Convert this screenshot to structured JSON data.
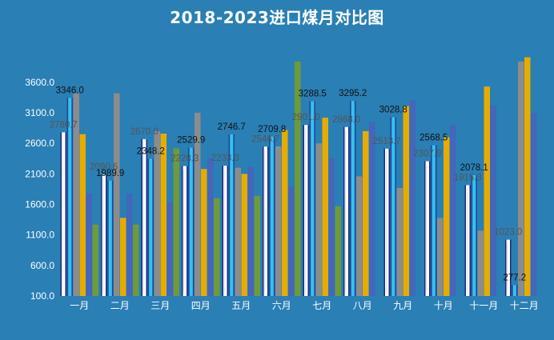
{
  "chart_data": {
    "type": "bar",
    "title": "2018-2023进口煤月对比图",
    "xlabel": "",
    "ylabel": "",
    "categories": [
      "一月",
      "二月",
      "三月",
      "四月",
      "五月",
      "六月",
      "七月",
      "八月",
      "九月",
      "十月",
      "十一月",
      "十二月"
    ],
    "ylim": [
      100,
      3900
    ],
    "yticks": [
      100.0,
      600.0,
      1100.0,
      1600.0,
      2100.0,
      2600.0,
      3100.0,
      3600.0
    ],
    "ytick_labels": [
      "100.0",
      "600.0",
      "1100.0",
      "1600.0",
      "2100.0",
      "2600.0",
      "3100.0",
      "3600.0"
    ],
    "grid": false,
    "legend": "none",
    "series": [
      {
        "color": "#ffffff",
        "values": [
          2780.7,
          2090.6,
          2670.0,
          2228.3,
          2233.3,
          2546.7,
          2901.0,
          2868.0,
          2513.7,
          2307.9,
          1915.3,
          1023.0
        ],
        "labels": [
          "2780.7",
          "2090.6",
          "2670.0",
          "2228.3",
          "2233.3",
          "2546.7",
          "2901.0",
          "2868.0",
          "2513.7",
          "2307.9",
          "1915.3",
          "1023.0"
        ]
      },
      {
        "color": "#2eb3e0",
        "values": [
          3346.0,
          1989.9,
          2348.2,
          2529.9,
          2746.7,
          2709.8,
          3288.5,
          3295.2,
          3028.8,
          2568.5,
          2078.1,
          277.2
        ],
        "labels": [
          "3346.0",
          "1989.9",
          "2348.2",
          "2529.9",
          "2746.7",
          "2709.8",
          "3288.5",
          "3295.2",
          "3028.8",
          "2568.5",
          "2078.1",
          "277.2"
        ]
      },
      {
        "color": "#8c8c8c",
        "values": [
          3420,
          3420,
          2800,
          3100,
          2200,
          2550,
          2600,
          2060,
          1870,
          1380,
          1170,
          3940
        ]
      },
      {
        "color": "#e6ac00",
        "values": [
          2750,
          1380,
          2760,
          2180,
          2100,
          2820,
          3020,
          2800,
          3210,
          2700,
          3530,
          4010
        ]
      },
      {
        "color": "#4466bb",
        "values": [
          1780,
          1780,
          1630,
          2360,
          2220,
          1890,
          2360,
          2950,
          3310,
          2900,
          3220,
          3100
        ]
      },
      {
        "color": "#6f9a3a",
        "values": [
          1270,
          1270,
          2520,
          1700,
          1740,
          3940,
          1570,
          null,
          null,
          null,
          null,
          null
        ]
      }
    ]
  }
}
